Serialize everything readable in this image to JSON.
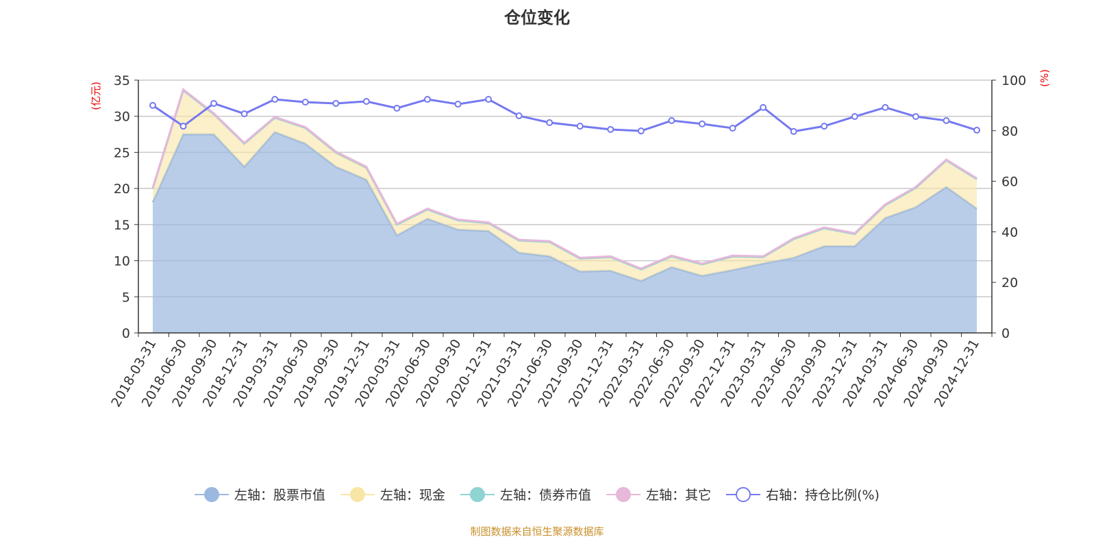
{
  "chart_data": {
    "type": "area",
    "title": "仓位变化",
    "ylabel_left": "(亿元)",
    "ylabel_right": "(%)",
    "ylim_left": [
      0,
      35
    ],
    "ylim_right": [
      0,
      100
    ],
    "yticks_left": [
      "0",
      "5",
      "10",
      "15",
      "20",
      "25",
      "30",
      "35"
    ],
    "yticks_right": [
      "0",
      "20",
      "40",
      "60",
      "80",
      "100"
    ],
    "grid": true,
    "legend_position": "bottom",
    "stacked": true,
    "categories": [
      "2018-03-31",
      "2018-06-30",
      "2018-09-30",
      "2018-12-31",
      "2019-03-31",
      "2019-06-30",
      "2019-09-30",
      "2019-12-31",
      "2020-03-31",
      "2020-06-30",
      "2020-09-30",
      "2020-12-31",
      "2021-03-31",
      "2021-06-30",
      "2021-09-30",
      "2021-12-31",
      "2022-03-31",
      "2022-06-30",
      "2022-09-30",
      "2022-12-31",
      "2023-03-31",
      "2023-06-30",
      "2023-09-30",
      "2023-12-31",
      "2024-03-31",
      "2024-06-30",
      "2024-09-30",
      "2024-12-31"
    ],
    "series": [
      {
        "name": "左轴：股票市值",
        "axis": "left",
        "color": "#9bb8e0",
        "values": [
          18.1,
          27.5,
          27.5,
          23.0,
          27.8,
          26.2,
          23.0,
          21.2,
          13.5,
          15.8,
          14.3,
          14.1,
          11.1,
          10.6,
          8.5,
          8.6,
          7.2,
          9.1,
          7.9,
          8.7,
          9.6,
          10.4,
          12.0,
          12.0,
          15.9,
          17.4,
          20.2,
          17.2
        ]
      },
      {
        "name": "左轴：现金",
        "axis": "left",
        "color": "#f8e6a6",
        "values": [
          1.9,
          6.1,
          2.8,
          3.2,
          2.0,
          2.2,
          1.9,
          1.6,
          1.5,
          1.3,
          1.3,
          1.1,
          1.7,
          2.0,
          1.8,
          1.9,
          1.6,
          1.5,
          1.6,
          1.9,
          0.9,
          2.6,
          2.5,
          1.7,
          1.8,
          2.7,
          3.7,
          4.1
        ]
      },
      {
        "name": "左轴：债券市值",
        "axis": "left",
        "color": "#8fd3d3",
        "values": [
          0,
          0,
          0,
          0,
          0,
          0,
          0.1,
          0.1,
          0,
          0,
          0,
          0,
          0,
          0,
          0,
          0,
          0,
          0,
          0,
          0,
          0,
          0,
          0,
          0,
          0,
          0,
          0,
          0
        ]
      },
      {
        "name": "左轴：其它",
        "axis": "left",
        "color": "#e6b8da",
        "values": [
          0.1,
          0.1,
          0.1,
          0.1,
          0.1,
          0.1,
          0.1,
          0.1,
          0.1,
          0.1,
          0.1,
          0.1,
          0.1,
          0.1,
          0.1,
          0.1,
          0.1,
          0.1,
          0.1,
          0.1,
          0.1,
          0.1,
          0.1,
          0.1,
          0.1,
          0.1,
          0.1,
          0.1
        ]
      },
      {
        "name": "右轴：持仓比例(%)",
        "axis": "right",
        "color": "#7479f0",
        "values": [
          90.0,
          81.8,
          90.8,
          86.7,
          92.4,
          91.3,
          90.8,
          91.6,
          88.9,
          92.4,
          90.5,
          92.4,
          85.9,
          83.2,
          81.8,
          80.5,
          79.9,
          84.0,
          82.7,
          81.0,
          89.2,
          79.7,
          81.8,
          85.6,
          89.2,
          85.6,
          84.0,
          80.2
        ]
      }
    ]
  },
  "source_note": "制图数据来自恒生聚源数据库"
}
